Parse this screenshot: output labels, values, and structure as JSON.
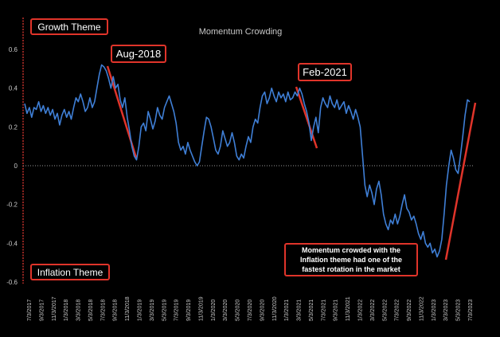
{
  "chart_data": {
    "type": "line",
    "title": "Momentum Crowding",
    "xlabel": "",
    "ylabel": "",
    "ylim": [
      -0.6,
      0.7
    ],
    "yticks": [
      {
        "value": 0.6,
        "label": "0.6"
      },
      {
        "value": 0.4,
        "label": "0.4"
      },
      {
        "value": 0.2,
        "label": "0.2"
      },
      {
        "value": 0,
        "label": "0"
      },
      {
        "value": -0.2,
        "label": "-0.2"
      },
      {
        "value": -0.4,
        "label": "-0.4"
      },
      {
        "value": -0.6,
        "label": "-0.6"
      }
    ],
    "xticks": [
      "7/3/2017",
      "9/3/2017",
      "11/3/2017",
      "1/3/2018",
      "3/3/2018",
      "5/3/2018",
      "7/3/2018",
      "9/3/2018",
      "11/3/2018",
      "1/3/2019",
      "3/3/2019",
      "5/3/2019",
      "7/3/2019",
      "9/3/2019",
      "11/3/2019",
      "1/3/2020",
      "3/3/2020",
      "5/3/2020",
      "7/3/2020",
      "9/3/2020",
      "11/3/2020",
      "1/3/2021",
      "3/3/2021",
      "5/3/2021",
      "7/3/2021",
      "9/3/2021",
      "11/3/2021",
      "1/3/2022",
      "3/3/2022",
      "5/3/2022",
      "7/3/2022",
      "9/3/2022",
      "11/3/2022",
      "1/3/2023",
      "3/3/2023",
      "5/3/2023",
      "7/3/2023"
    ],
    "grid": false,
    "line_color": "#3f7fd6",
    "series": [
      {
        "values": [
          0.32,
          0.27,
          0.3,
          0.25,
          0.3,
          0.29,
          0.33,
          0.28,
          0.31,
          0.27,
          0.3,
          0.26,
          0.29,
          0.24,
          0.27,
          0.21,
          0.26,
          0.29,
          0.25,
          0.28,
          0.24,
          0.3,
          0.35,
          0.33,
          0.37,
          0.33,
          0.28,
          0.3,
          0.35,
          0.3,
          0.33,
          0.4,
          0.47,
          0.52,
          0.51,
          0.49,
          0.45,
          0.4,
          0.46,
          0.4,
          0.42,
          0.34,
          0.3,
          0.35,
          0.25,
          0.18,
          0.1,
          0.05,
          0.03,
          0.1,
          0.2,
          0.22,
          0.18,
          0.28,
          0.24,
          0.19,
          0.23,
          0.3,
          0.26,
          0.24,
          0.3,
          0.33,
          0.36,
          0.32,
          0.28,
          0.22,
          0.12,
          0.08,
          0.1,
          0.06,
          0.12,
          0.08,
          0.05,
          0.02,
          0.0,
          0.02,
          0.1,
          0.18,
          0.25,
          0.24,
          0.2,
          0.14,
          0.08,
          0.06,
          0.1,
          0.18,
          0.14,
          0.1,
          0.12,
          0.17,
          0.12,
          0.05,
          0.03,
          0.06,
          0.04,
          0.1,
          0.15,
          0.12,
          0.2,
          0.24,
          0.22,
          0.3,
          0.36,
          0.38,
          0.32,
          0.35,
          0.4,
          0.36,
          0.33,
          0.38,
          0.35,
          0.37,
          0.33,
          0.38,
          0.34,
          0.35,
          0.38,
          0.36,
          0.4,
          0.37,
          0.32,
          0.28,
          0.22,
          0.13,
          0.2,
          0.25,
          0.17,
          0.3,
          0.35,
          0.32,
          0.3,
          0.36,
          0.32,
          0.3,
          0.34,
          0.29,
          0.31,
          0.33,
          0.27,
          0.31,
          0.28,
          0.24,
          0.29,
          0.25,
          0.2,
          0.05,
          -0.1,
          -0.16,
          -0.1,
          -0.14,
          -0.2,
          -0.12,
          -0.08,
          -0.15,
          -0.25,
          -0.3,
          -0.33,
          -0.28,
          -0.3,
          -0.25,
          -0.3,
          -0.26,
          -0.2,
          -0.15,
          -0.22,
          -0.24,
          -0.28,
          -0.26,
          -0.3,
          -0.35,
          -0.38,
          -0.34,
          -0.4,
          -0.42,
          -0.4,
          -0.45,
          -0.43,
          -0.47,
          -0.44,
          -0.38,
          -0.25,
          -0.1,
          0.0,
          0.08,
          0.04,
          -0.02,
          -0.04,
          0.05,
          0.15,
          0.26,
          0.34,
          0.33
        ]
      }
    ],
    "annotations": {
      "growth_theme": "Growth Theme",
      "inflation_theme": "Inflation Theme",
      "aug_2018": "Aug-2018",
      "feb_2021": "Feb-2021",
      "note_line1": "Momentum crowded with the",
      "note_line2": "Inflation theme had one of the",
      "note_line3": "fastest rotation in the market"
    }
  }
}
